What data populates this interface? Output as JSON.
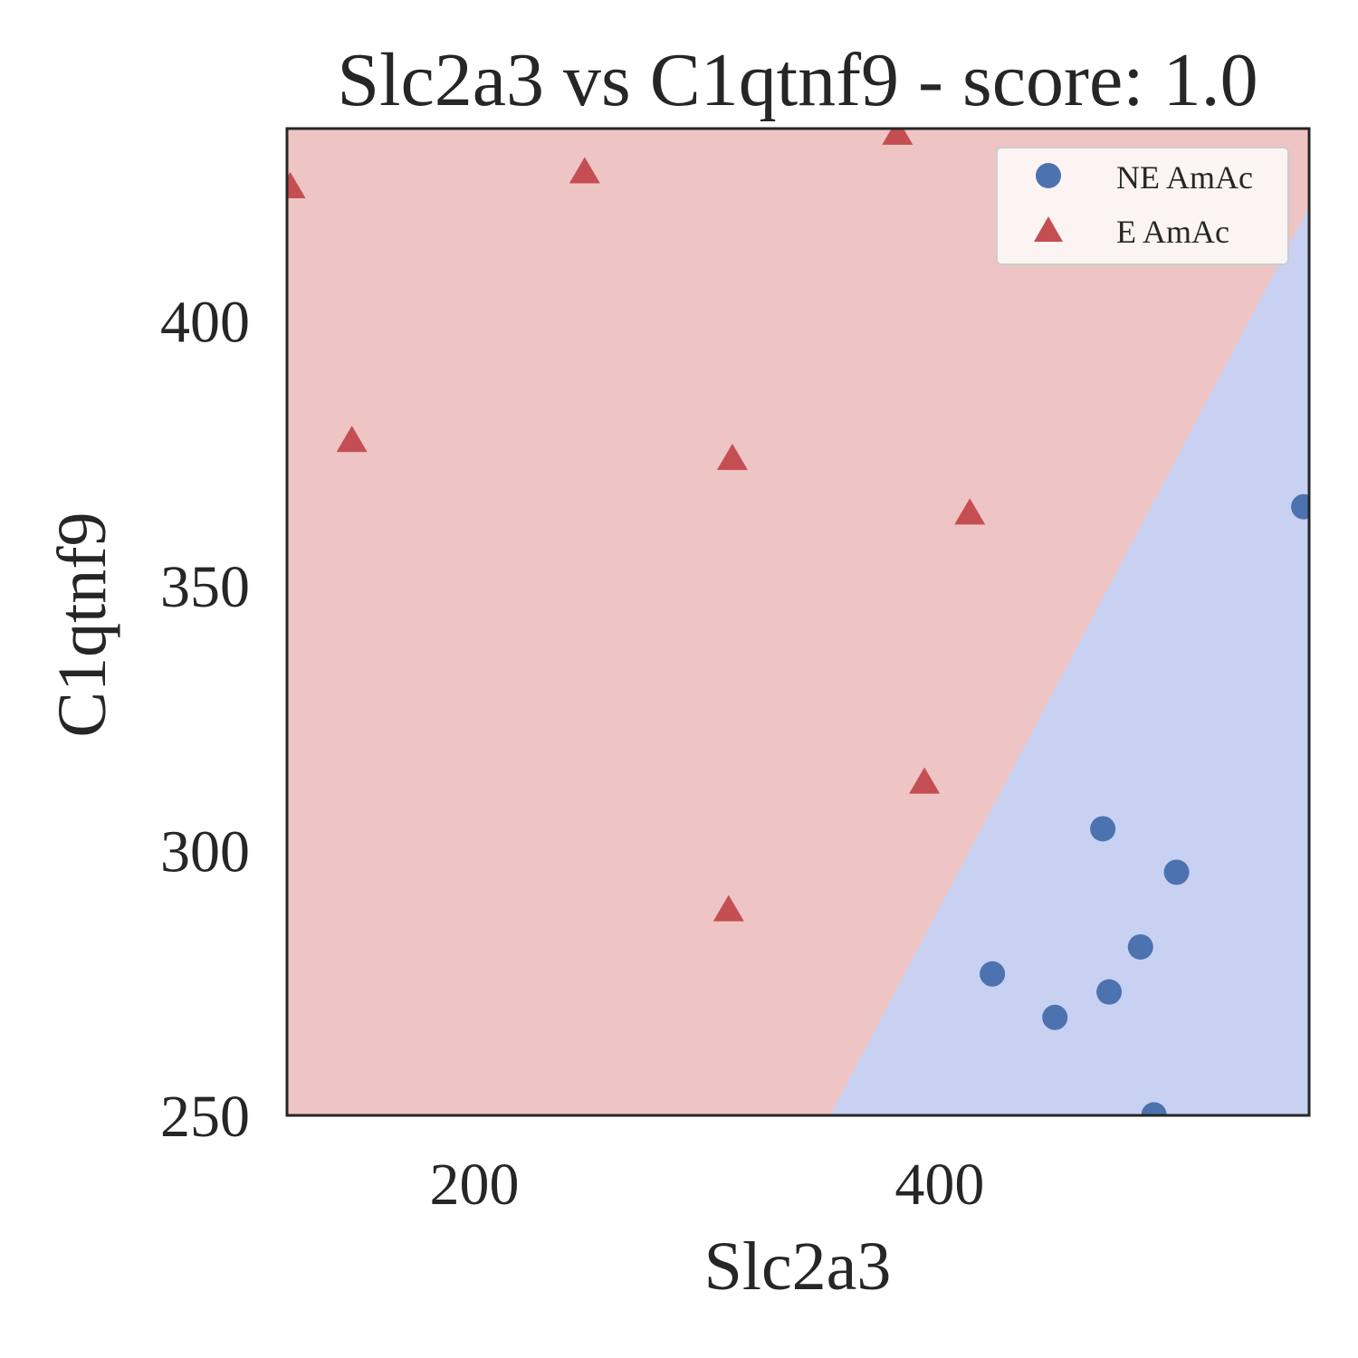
{
  "chart_data": {
    "type": "scatter",
    "title": "Slc2a3 vs C1qtnf9 - score: 1.0",
    "xlabel": "Slc2a3",
    "ylabel": "C1qtnf9",
    "xlim": [
      119.4,
      558.9
    ],
    "ylim": [
      250,
      436.3
    ],
    "xticks": [
      200,
      400
    ],
    "yticks": [
      250,
      300,
      350,
      400
    ],
    "grid": false,
    "legend_position": "top-right",
    "decision_boundary": {
      "points": [
        [
          352.9,
          250
        ],
        [
          558.9,
          421.5
        ]
      ],
      "regions": [
        {
          "class": "E AmAc",
          "side": "upper-left",
          "color": "#eec5c4"
        },
        {
          "class": "NE AmAc",
          "side": "lower-right",
          "color": "#c8d1f1"
        }
      ]
    },
    "series": [
      {
        "name": "NE AmAc",
        "marker": "circle",
        "color": "#4c72b0",
        "x": [
          556.6,
          470.2,
          501.9,
          486.4,
          422.7,
          472.9,
          449.6,
          492.2
        ],
        "y": [
          364.9,
          304.1,
          295.9,
          281.8,
          276.7,
          273.3,
          268.5,
          250.1
        ]
      },
      {
        "name": "E AmAc",
        "marker": "triangle",
        "color": "#c44e52",
        "x": [
          381.9,
          247.4,
          120.8,
          147.3,
          310.9,
          413.0,
          393.5,
          309.3
        ],
        "y": [
          435.3,
          428.0,
          425.2,
          377.3,
          373.9,
          363.6,
          312.8,
          288.7
        ]
      }
    ]
  }
}
